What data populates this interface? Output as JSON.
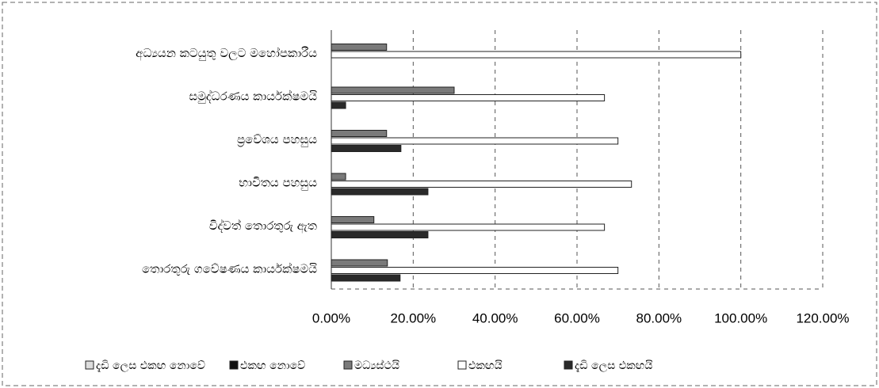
{
  "chart_data": {
    "type": "hbar",
    "categories": [
      "අධ්‍යයන කටයුතු වලට මහෝපකාරීය",
      "සමුද්ධරණය කාර්යක්ෂමයි",
      "ප්‍රවේශය පහසුය",
      "භාවිතය පහසුය",
      "විද්වත් තොරතුරු ඇත",
      "තොරතුරු ගවේෂණය කාර්යක්ෂමයි"
    ],
    "series": [
      {
        "name": "දැඩි ලෙස එකඟ නොවේ",
        "color": "#dddddd",
        "values": [
          0,
          0,
          0,
          0,
          0,
          0
        ]
      },
      {
        "name": "එකඟ නොවේ",
        "color": "#111111",
        "values": [
          0,
          0,
          0,
          0,
          0,
          0
        ]
      },
      {
        "name": "මධ්‍යස්ථයි",
        "color": "#7a7a7a",
        "values": [
          13.5,
          30,
          13.5,
          3.5,
          10.4,
          13.7
        ]
      },
      {
        "name": "එකඟයි",
        "color": "#ffffff",
        "values": [
          100,
          66.7,
          70,
          73.3,
          66.7,
          70
        ]
      },
      {
        "name": "දැඩි ලෙස එකඟයි",
        "color": "#2a2a2a",
        "values": [
          0,
          3.5,
          17,
          23.6,
          23.6,
          16.8
        ]
      }
    ],
    "xlim": [
      0,
      120
    ],
    "xticks": [
      {
        "value": 0,
        "label": "0.00%"
      },
      {
        "value": 20,
        "label": "20.00%"
      },
      {
        "value": 40,
        "label": "40.00%"
      },
      {
        "value": 60,
        "label": "60.00%"
      },
      {
        "value": 80,
        "label": "80.00%"
      },
      {
        "value": 100,
        "label": "100.00%"
      },
      {
        "value": 120,
        "label": "120.00%"
      }
    ],
    "grid": true,
    "legend": "bottom"
  }
}
